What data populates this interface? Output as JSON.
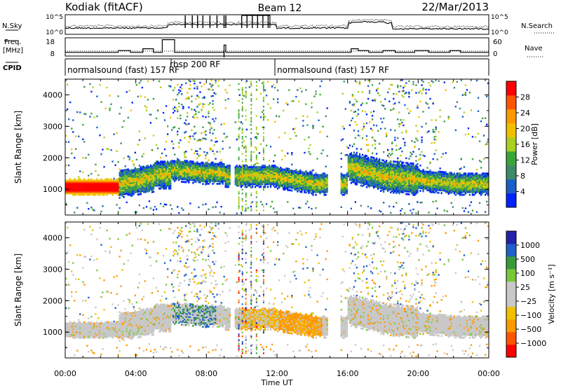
{
  "header": {
    "station": "Kodiak (fitACF)",
    "beam": "Beam 12",
    "date": "22/Mar/2013"
  },
  "strip_labels": {
    "nsky": "N.Sky",
    "freq_line1": "Freq.",
    "freq_line2": "[MHz]",
    "cpid": "CPID",
    "nsearch": "N.Search",
    "nave": "Nave",
    "left_top_tick": "10^5",
    "left_bottom_tick": "10^0",
    "right_top_tick": "10^5",
    "right_bottom_tick": "10^0",
    "freq_ticks": [
      "18",
      "8"
    ],
    "nave_ticks": [
      "60",
      "0"
    ]
  },
  "cpid_segments": [
    {
      "label": "normalsound (fast) 157 RF",
      "start_h": 0
    },
    {
      "label": "rbsp 200 RF",
      "start_h": 6
    },
    {
      "label": "normalsound (fast) 157 RF",
      "start_h": 12
    }
  ],
  "colors": {
    "power": [
      "#0022ff",
      "#1a5fc8",
      "#3c8a6a",
      "#3aa63a",
      "#a8d020",
      "#f0c000",
      "#ff9900",
      "#ff5500",
      "#ff0000"
    ],
    "velocity": [
      "#ff0000",
      "#ff5500",
      "#ff9900",
      "#f0c000",
      "#c8c8c8",
      "#c8c8c8",
      "#7ac83a",
      "#3a9a3a",
      "#2060c8",
      "#2222aa"
    ]
  },
  "chart_data": [
    {
      "type": "line",
      "title": "N.Sky / N.Search",
      "ylim_log10": [
        0,
        5
      ],
      "note": "noise levels (solid N.Sky, dotted N.Search)"
    },
    {
      "type": "line",
      "title": "Freq. / Nave",
      "freq_ylim": [
        8,
        18
      ],
      "nave_ylim": [
        0,
        60
      ],
      "freq_steps": [
        {
          "x0": 0,
          "x1": 3.0,
          "y": 10
        },
        {
          "x0": 3.0,
          "x1": 3.7,
          "y": 11
        },
        {
          "x0": 3.7,
          "x1": 4.4,
          "y": 10
        },
        {
          "x0": 4.4,
          "x1": 5.0,
          "y": 12
        },
        {
          "x0": 5.0,
          "x1": 5.5,
          "y": 10
        },
        {
          "x0": 5.5,
          "x1": 6.2,
          "y": 17
        },
        {
          "x0": 6.2,
          "x1": 9.0,
          "y": 10
        },
        {
          "x0": 9.0,
          "x1": 9.1,
          "y": 14
        },
        {
          "x0": 9.1,
          "x1": 16.2,
          "y": 10
        },
        {
          "x0": 16.2,
          "x1": 16.6,
          "y": 12
        },
        {
          "x0": 16.6,
          "x1": 17.2,
          "y": 11
        },
        {
          "x0": 17.2,
          "x1": 18.0,
          "y": 10
        },
        {
          "x0": 18.0,
          "x1": 18.7,
          "y": 11
        },
        {
          "x0": 18.7,
          "x1": 19.8,
          "y": 10
        },
        {
          "x0": 19.8,
          "x1": 20.6,
          "y": 11
        },
        {
          "x0": 20.6,
          "x1": 21.8,
          "y": 10
        },
        {
          "x0": 21.8,
          "x1": 22.4,
          "y": 11
        },
        {
          "x0": 22.4,
          "x1": 24,
          "y": 10
        }
      ]
    },
    {
      "type": "heatmap",
      "name": "power",
      "ylabel": "Slant Range [km]",
      "ylim": [
        180,
        4500
      ],
      "xlim": [
        0,
        24
      ],
      "colorbar_label": "Power [dB]",
      "colorbar_ticks": [
        "28",
        "24",
        "20",
        "16",
        "12",
        "8",
        "4"
      ],
      "yticks": [
        "1000",
        "2000",
        "3000",
        "4000"
      ]
    },
    {
      "type": "heatmap",
      "name": "velocity",
      "ylabel": "Slant Range [km]",
      "ylim": [
        180,
        4500
      ],
      "xlim": [
        0,
        24
      ],
      "colorbar_label": "Velocity [m s⁻¹]",
      "colorbar_ticks": [
        "1000",
        "500",
        "100",
        "25",
        "−25",
        "−100",
        "−500",
        "−1000"
      ],
      "yticks": [
        "1000",
        "2000",
        "3000",
        "4000"
      ],
      "xticks": [
        "00:00",
        "04:00",
        "08:00",
        "12:00",
        "16:00",
        "20:00",
        "00:00"
      ],
      "xlabel": "Time UT"
    }
  ]
}
